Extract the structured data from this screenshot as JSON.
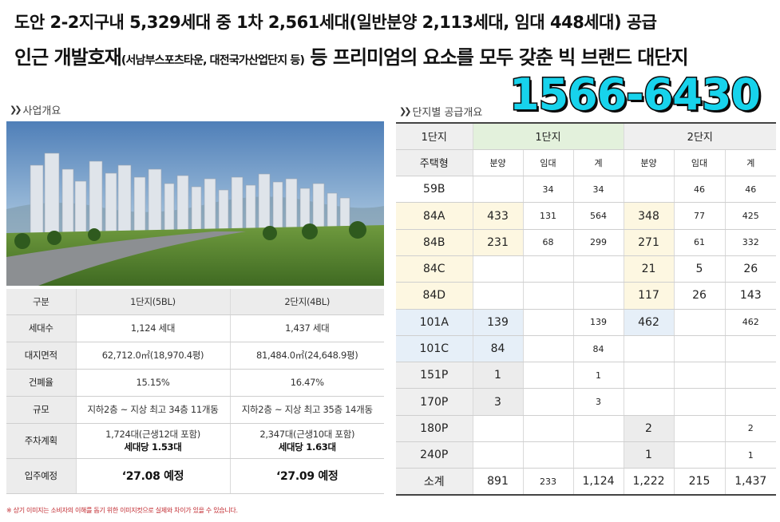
{
  "headline": {
    "line1": "도안 2-2지구내 5,329세대 중 1차 2,561세대(일반분양 2,113세대, 임대 448세대) 공급",
    "line2_prefix": "인근 개발호재",
    "line2_small": "(서남부스포츠타운, 대전국가산업단지 등)",
    "line2_suffix": " 등 프리미엄의 요소를 모두 갖춘 빅 브랜드 대단지"
  },
  "phone": "1566-6430",
  "overview": {
    "label": "사업개요",
    "headers": [
      "구분",
      "1단지(5BL)",
      "2단지(4BL)"
    ],
    "rows": [
      {
        "label": "세대수",
        "c1": "1,124 세대",
        "c2": "1,437 세대"
      },
      {
        "label": "대지면적",
        "c1": "62,712.0㎡(18,970.4평)",
        "c2": "81,484.0㎡(24,648.9평)"
      },
      {
        "label": "건폐율",
        "c1": "15.15%",
        "c2": "16.47%"
      },
      {
        "label": "규모",
        "c1": "지하2층 ~ 지상 최고 34층 11개동",
        "c2": "지하2층 ~ 지상 최고 35층 14개동"
      }
    ],
    "parking": {
      "label": "주차계획",
      "c1_line1": "1,724대(근생12대 포함)",
      "c1_line2": "세대당 1.53대",
      "c2_line1": "2,347대(근생10대 포함)",
      "c2_line2": "세대당 1.63대"
    },
    "movein": {
      "label": "입주예정",
      "c1": "‘27.08 예정",
      "c2": "‘27.09 예정"
    }
  },
  "note": "※ 상기 이미지는 소비자의 이해를 돕기 위한 이미지컷으로 실제와 차이가 있을 수 있습니다.",
  "supply": {
    "label": "단지별 공급개요",
    "group_header": [
      "1단지",
      "1단지",
      "2단지"
    ],
    "sub_header": [
      "주택형",
      "분양",
      "임대",
      "계",
      "분양",
      "임대",
      "계"
    ],
    "rows": [
      [
        "59B",
        "",
        "34",
        "34",
        "",
        "46",
        "46"
      ],
      [
        "84A",
        "433",
        "131",
        "564",
        "348",
        "77",
        "425"
      ],
      [
        "84B",
        "231",
        "68",
        "299",
        "271",
        "61",
        "332"
      ],
      [
        "84C",
        "",
        "",
        "",
        "21",
        "5",
        "26"
      ],
      [
        "84D",
        "",
        "",
        "",
        "117",
        "26",
        "143"
      ],
      [
        "101A",
        "139",
        "",
        "139",
        "462",
        "",
        "462"
      ],
      [
        "101C",
        "84",
        "",
        "84",
        "",
        "",
        ""
      ],
      [
        "151P",
        "1",
        "",
        "1",
        "",
        "",
        ""
      ],
      [
        "170P",
        "3",
        "",
        "3",
        "",
        "",
        ""
      ],
      [
        "180P",
        "",
        "",
        "",
        "2",
        "",
        "2"
      ],
      [
        "240P",
        "",
        "",
        "",
        "1",
        "",
        "1"
      ]
    ],
    "total": [
      "소계",
      "891",
      "233",
      "1,124",
      "1,222",
      "215",
      "1,437"
    ]
  },
  "colors": {
    "phone": "#17d3ec",
    "group1": "#e3f1dc",
    "highlight_yellow": "#fdf7e1",
    "highlight_blue": "#e6eff8"
  }
}
